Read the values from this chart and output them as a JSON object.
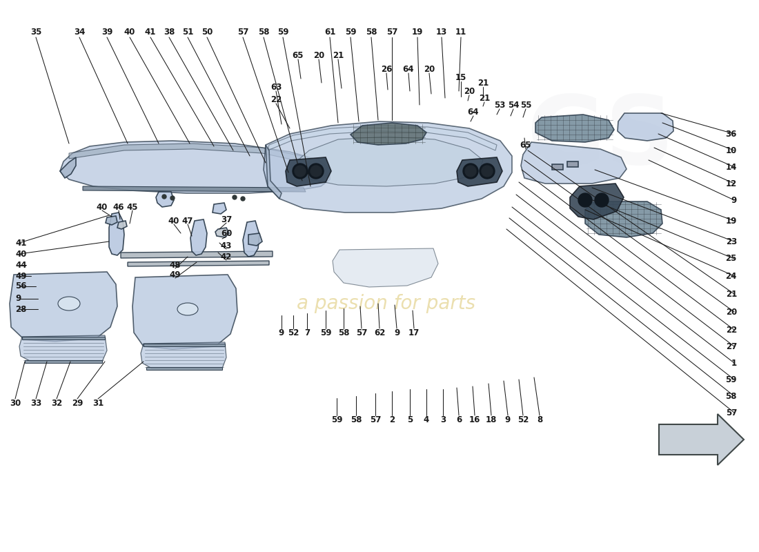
{
  "bg_color": "#ffffff",
  "part_color": "#b8c8e0",
  "part_color2": "#a8b8cc",
  "mesh_color": "#708898",
  "dark_color": "#384858",
  "edge_color": "#283848",
  "line_color": "#1a1a1a",
  "text_color": "#1a1a1a",
  "watermark_text": "a passion for parts",
  "watermark_color": "#d8c060",
  "label_fs": 8.5,
  "arrow_color": "#c8d0d8"
}
